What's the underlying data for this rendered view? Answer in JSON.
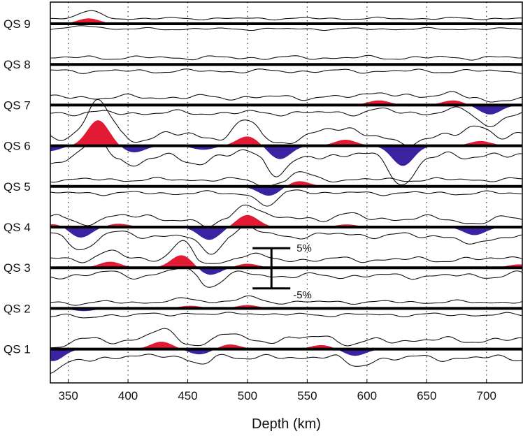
{
  "chart_data": {
    "type": "line",
    "xlabel": "Depth (km)",
    "xlim": [
      335,
      730
    ],
    "xticks": [
      350,
      400,
      450,
      500,
      550,
      600,
      650,
      700
    ],
    "grid": "vertical-dotted",
    "colors": {
      "positive": "#e31a33",
      "negative": "#3b22a0",
      "trace": "#000000"
    },
    "scale_bar": {
      "labels": [
        "5%",
        "-5%"
      ],
      "center_depth": 530,
      "half_range_pct": 5
    },
    "series": [
      {
        "label": "QS 9",
        "peaks": [
          [
            367,
            0.8
          ]
        ],
        "env_width": 0.6
      },
      {
        "label": "QS 8",
        "peaks": [],
        "env_width": 1.0
      },
      {
        "label": "QS 7",
        "peaks": [
          [
            610,
            0.7
          ],
          [
            672,
            0.7
          ],
          [
            703,
            -1.4
          ]
        ],
        "env_width": 1.3
      },
      {
        "label": "QS 6",
        "peaks": [
          [
            334,
            -0.8
          ],
          [
            375,
            3.8
          ],
          [
            405,
            -1.0
          ],
          [
            463,
            -0.6
          ],
          [
            500,
            1.4
          ],
          [
            527,
            -2.0
          ],
          [
            582,
            0.9
          ],
          [
            630,
            -3.0
          ],
          [
            695,
            0.7
          ]
        ],
        "env_width": 2.2
      },
      {
        "label": "QS 5",
        "peaks": [
          [
            518,
            -1.4
          ],
          [
            543,
            0.8
          ]
        ],
        "env_width": 1.0
      },
      {
        "label": "QS 4",
        "peaks": [
          [
            340,
            0.5
          ],
          [
            360,
            -1.6
          ],
          [
            392,
            0.5
          ],
          [
            468,
            -1.9
          ],
          [
            500,
            1.8
          ],
          [
            583,
            0.4
          ],
          [
            690,
            -1.2
          ]
        ],
        "env_width": 1.5
      },
      {
        "label": "QS 3",
        "peaks": [
          [
            385,
            0.9
          ],
          [
            445,
            1.9
          ],
          [
            468,
            -1.1
          ],
          [
            500,
            0.6
          ],
          [
            727,
            0.5
          ]
        ],
        "env_width": 1.4
      },
      {
        "label": "QS 2",
        "peaks": [
          [
            363,
            -0.4
          ],
          [
            452,
            0.4
          ],
          [
            500,
            0.5
          ]
        ],
        "env_width": 0.9
      },
      {
        "label": "QS 1",
        "peaks": [
          [
            337,
            -1.8
          ],
          [
            428,
            1.1
          ],
          [
            460,
            -0.8
          ],
          [
            485,
            0.7
          ],
          [
            562,
            0.6
          ],
          [
            590,
            -1.0
          ]
        ],
        "env_width": 1.6
      }
    ]
  }
}
